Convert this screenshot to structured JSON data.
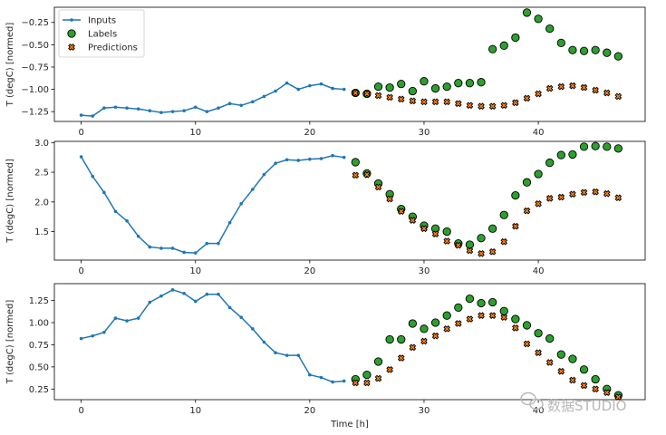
{
  "chart_data": [
    {
      "type": "line",
      "xlabel": "",
      "ylabel": "T (degC) [normed]",
      "xlim": [
        -2.35,
        49.35
      ],
      "ylim": [
        -1.36,
        -0.08
      ],
      "xticks": [
        0,
        10,
        20,
        30,
        40
      ],
      "yticks": [
        -1.25,
        -1.0,
        -0.75,
        -0.5,
        -0.25
      ],
      "ytick_labels": [
        "−1.25",
        "−1.00",
        "−0.75",
        "−0.50",
        "−0.25"
      ],
      "legend": {
        "position": "top-left",
        "entries": [
          "Inputs",
          "Labels",
          "Predictions"
        ]
      },
      "series": [
        {
          "name": "Inputs",
          "kind": "line-marker",
          "x": [
            0,
            1,
            2,
            3,
            4,
            5,
            6,
            7,
            8,
            9,
            10,
            11,
            12,
            13,
            14,
            15,
            16,
            17,
            18,
            19,
            20,
            21,
            22,
            23
          ],
          "values": [
            -1.29,
            -1.3,
            -1.21,
            -1.2,
            -1.21,
            -1.22,
            -1.24,
            -1.26,
            -1.25,
            -1.24,
            -1.2,
            -1.25,
            -1.21,
            -1.16,
            -1.18,
            -1.14,
            -1.08,
            -1.02,
            -0.93,
            -1.0,
            -0.96,
            -0.94,
            -0.99,
            -1.0
          ]
        },
        {
          "name": "Labels",
          "kind": "scatter-circle",
          "x": [
            24,
            25,
            26,
            27,
            28,
            29,
            30,
            31,
            32,
            33,
            34,
            35,
            36,
            37,
            38,
            39,
            40,
            41,
            42,
            43,
            44,
            45,
            46,
            47
          ],
          "values": [
            -1.04,
            -1.05,
            -0.97,
            -0.98,
            -0.94,
            -1.02,
            -0.91,
            -0.99,
            -0.97,
            -0.93,
            -0.93,
            -0.92,
            -0.55,
            -0.51,
            -0.42,
            -0.14,
            -0.21,
            -0.32,
            -0.48,
            -0.56,
            -0.57,
            -0.56,
            -0.59,
            -0.63
          ]
        },
        {
          "name": "Predictions",
          "kind": "scatter-x",
          "x": [
            24,
            25,
            26,
            27,
            28,
            29,
            30,
            31,
            32,
            33,
            34,
            35,
            36,
            37,
            38,
            39,
            40,
            41,
            42,
            43,
            44,
            45,
            46,
            47
          ],
          "values": [
            -1.04,
            -1.05,
            -1.07,
            -1.09,
            -1.11,
            -1.13,
            -1.14,
            -1.14,
            -1.14,
            -1.16,
            -1.18,
            -1.19,
            -1.19,
            -1.18,
            -1.15,
            -1.1,
            -1.05,
            -0.99,
            -0.97,
            -0.96,
            -0.98,
            -1.01,
            -1.04,
            -1.08
          ]
        }
      ]
    },
    {
      "type": "line",
      "xlabel": "",
      "ylabel": "T (degC) [normed]",
      "xlim": [
        -2.35,
        49.35
      ],
      "ylim": [
        1.02,
        3.02
      ],
      "xticks": [
        0,
        10,
        20,
        30,
        40
      ],
      "yticks": [
        1.5,
        2.0,
        2.5,
        3.0
      ],
      "ytick_labels": [
        "1.5",
        "2.0",
        "2.5",
        "3.0"
      ],
      "series": [
        {
          "name": "Inputs",
          "kind": "line-marker",
          "x": [
            0,
            1,
            2,
            3,
            4,
            5,
            6,
            7,
            8,
            9,
            10,
            11,
            12,
            13,
            14,
            15,
            16,
            17,
            18,
            19,
            20,
            21,
            22,
            23
          ],
          "values": [
            2.76,
            2.43,
            2.16,
            1.84,
            1.68,
            1.42,
            1.24,
            1.22,
            1.22,
            1.15,
            1.14,
            1.3,
            1.3,
            1.65,
            1.97,
            2.21,
            2.46,
            2.65,
            2.71,
            2.7,
            2.72,
            2.73,
            2.78,
            2.75
          ]
        },
        {
          "name": "Labels",
          "kind": "scatter-circle",
          "x": [
            24,
            25,
            26,
            27,
            28,
            29,
            30,
            31,
            32,
            33,
            34,
            35,
            36,
            37,
            38,
            39,
            40,
            41,
            42,
            43,
            44,
            45,
            46,
            47
          ],
          "values": [
            2.67,
            2.48,
            2.31,
            2.13,
            1.88,
            1.75,
            1.6,
            1.55,
            1.5,
            1.3,
            1.28,
            1.39,
            1.55,
            1.78,
            2.11,
            2.33,
            2.47,
            2.66,
            2.79,
            2.8,
            2.93,
            2.94,
            2.93,
            2.9
          ]
        },
        {
          "name": "Predictions",
          "kind": "scatter-x",
          "x": [
            24,
            25,
            26,
            27,
            28,
            29,
            30,
            31,
            32,
            33,
            34,
            35,
            36,
            37,
            38,
            39,
            40,
            41,
            42,
            43,
            44,
            45,
            46,
            47
          ],
          "values": [
            2.45,
            2.46,
            2.25,
            2.05,
            1.84,
            1.69,
            1.55,
            1.46,
            1.34,
            1.27,
            1.18,
            1.13,
            1.16,
            1.33,
            1.59,
            1.85,
            1.97,
            2.06,
            2.08,
            2.13,
            2.16,
            2.17,
            2.14,
            2.07
          ]
        }
      ]
    },
    {
      "type": "line",
      "xlabel": "Time [h]",
      "ylabel": "T (degC) [normed]",
      "xlim": [
        -2.35,
        49.35
      ],
      "ylim": [
        0.13,
        1.44
      ],
      "xticks": [
        0,
        10,
        20,
        30,
        40
      ],
      "yticks": [
        0.25,
        0.5,
        0.75,
        1.0,
        1.25
      ],
      "ytick_labels": [
        "0.25",
        "0.50",
        "0.75",
        "1.00",
        "1.25"
      ],
      "series": [
        {
          "name": "Inputs",
          "kind": "line-marker",
          "x": [
            0,
            1,
            2,
            3,
            4,
            5,
            6,
            7,
            8,
            9,
            10,
            11,
            12,
            13,
            14,
            15,
            16,
            17,
            18,
            19,
            20,
            21,
            22,
            23
          ],
          "values": [
            0.82,
            0.85,
            0.89,
            1.05,
            1.02,
            1.05,
            1.23,
            1.3,
            1.37,
            1.33,
            1.24,
            1.32,
            1.32,
            1.17,
            1.06,
            0.93,
            0.78,
            0.66,
            0.63,
            0.63,
            0.41,
            0.38,
            0.33,
            0.34
          ]
        },
        {
          "name": "Labels",
          "kind": "scatter-circle",
          "x": [
            24,
            25,
            26,
            27,
            28,
            29,
            30,
            31,
            32,
            33,
            34,
            35,
            36,
            37,
            38,
            39,
            40,
            41,
            42,
            43,
            44,
            45,
            46,
            47
          ],
          "values": [
            0.36,
            0.41,
            0.56,
            0.81,
            0.81,
            0.99,
            0.93,
            1.0,
            1.08,
            1.17,
            1.27,
            1.22,
            1.23,
            1.13,
            1.04,
            0.97,
            0.88,
            0.82,
            0.64,
            0.59,
            0.47,
            0.36,
            0.25,
            0.18
          ]
        },
        {
          "name": "Predictions",
          "kind": "scatter-x",
          "x": [
            24,
            25,
            26,
            27,
            28,
            29,
            30,
            31,
            32,
            33,
            34,
            35,
            36,
            37,
            38,
            39,
            40,
            41,
            42,
            43,
            44,
            45,
            46,
            47
          ],
          "values": [
            0.32,
            0.32,
            0.37,
            0.47,
            0.6,
            0.72,
            0.79,
            0.85,
            0.93,
            0.99,
            1.04,
            1.08,
            1.08,
            1.06,
            0.94,
            0.76,
            0.66,
            0.55,
            0.45,
            0.35,
            0.29,
            0.25,
            0.21,
            0.16
          ]
        }
      ]
    }
  ],
  "colors": {
    "inputs": "#1f77b4",
    "labels": "#2ca02c",
    "predictions": "#ff7f0e",
    "marker_edge": "#000000",
    "axes_frame": "#000000"
  },
  "watermark": {
    "icon": "wechat-icon",
    "text": "数据STUDIO"
  }
}
